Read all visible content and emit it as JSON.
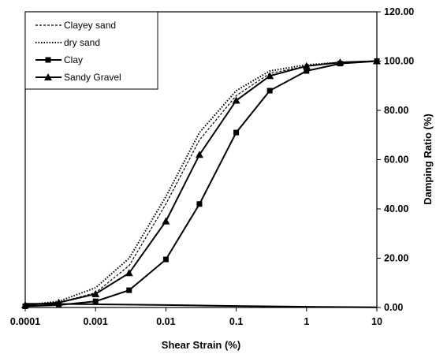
{
  "chart_data": {
    "type": "line",
    "title": "",
    "xlabel": "Shear Strain (%)",
    "ylabel": "Damping Ratio (%)",
    "xscale": "log",
    "xlim": [
      0.0001,
      10
    ],
    "ylim": [
      0,
      120
    ],
    "x_ticks": [
      "0.0001",
      "0.001",
      "0.01",
      "0.1",
      "1",
      "10"
    ],
    "y_ticks": [
      "0.00",
      "20.00",
      "40.00",
      "60.00",
      "80.00",
      "100.00",
      "120.00"
    ],
    "y_axis_side": "right",
    "legend_position": "top-left",
    "grid": false,
    "series": [
      {
        "name": "Clayey sand",
        "style": "dashed",
        "marker": "none",
        "x": [
          0.0001,
          0.0003,
          0.001,
          0.003,
          0.01,
          0.03,
          0.1,
          0.3,
          1,
          3,
          10
        ],
        "y": [
          1,
          2,
          6,
          17,
          42,
          68,
          86,
          95,
          98,
          99.5,
          100
        ]
      },
      {
        "name": "dry sand",
        "style": "dotted",
        "marker": "none",
        "x": [
          0.0001,
          0.0003,
          0.001,
          0.003,
          0.01,
          0.03,
          0.1,
          0.3,
          1,
          3,
          10
        ],
        "y": [
          1,
          2.5,
          8,
          20,
          45,
          71,
          88,
          96,
          98.5,
          99.5,
          100
        ]
      },
      {
        "name": "Clay",
        "style": "solid",
        "marker": "square",
        "x": [
          0.0001,
          0.0003,
          0.001,
          0.003,
          0.01,
          0.03,
          0.1,
          0.3,
          1,
          3,
          10
        ],
        "y": [
          0.5,
          1,
          2.5,
          7,
          19.5,
          42,
          71,
          88,
          96,
          99,
          100
        ]
      },
      {
        "name": "Sandy Gravel",
        "style": "solid",
        "marker": "triangle",
        "x": [
          0.0001,
          0.0003,
          0.001,
          0.003,
          0.01,
          0.03,
          0.1,
          0.3,
          1,
          3,
          10
        ],
        "y": [
          1,
          2,
          5.5,
          14,
          35,
          62,
          84,
          94,
          98,
          99.5,
          100
        ]
      },
      {
        "name": "",
        "style": "solid",
        "marker": "none",
        "x": [
          0.0001,
          0.001,
          0.01,
          0.1,
          1,
          10
        ],
        "y": [
          1.5,
          1.3,
          1,
          0.6,
          0.3,
          0.1
        ]
      }
    ]
  }
}
